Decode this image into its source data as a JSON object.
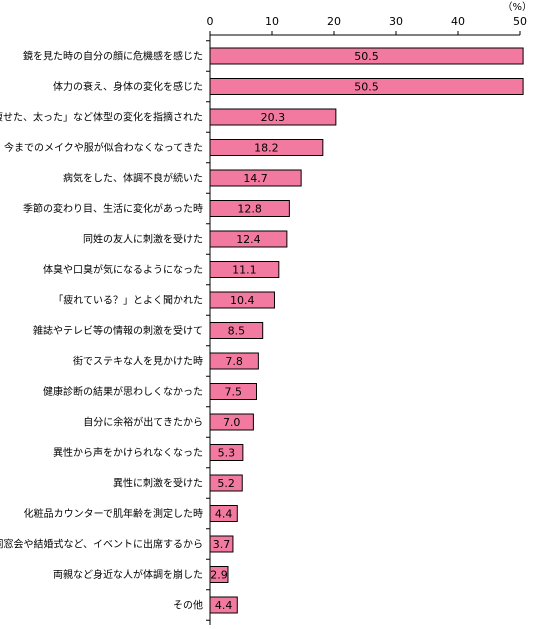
{
  "chart_data": {
    "type": "bar",
    "orientation": "horizontal",
    "unit": "（%）",
    "xlim": [
      0,
      50
    ],
    "ticks": [
      0,
      10,
      20,
      30,
      40,
      50
    ],
    "grid": false,
    "bar_color": "#F27AA0",
    "bar_stroke": "#000000",
    "categories": [
      "鏡を見た時の自分の顔に危機感を感じた",
      "体力の衰え、身体の変化を感じた",
      "「痩せた、太った」など体型の変化を指摘された",
      "今までのメイクや服が似合わなくなってきた",
      "病気をした、体調不良が続いた",
      "季節の変わり目、生活に変化があった時",
      "同姓の友人に刺激を受けた",
      "体臭や口臭が気になるようになった",
      "「疲れている？」とよく聞かれた",
      "雑誌やテレビ等の情報の刺激を受けて",
      "街でステキな人を見かけた時",
      "健康診断の結果が思わしくなかった",
      "自分に余裕が出てきたから",
      "異性から声をかけられなくなった",
      "異性に刺激を受けた",
      "化粧品カウンターで肌年齢を測定した時",
      "同窓会や結婚式など、イベントに出席するから",
      "両親など身近な人が体調を崩した",
      "その他"
    ],
    "values": [
      50.5,
      50.5,
      20.3,
      18.2,
      14.7,
      12.8,
      12.4,
      11.1,
      10.4,
      8.5,
      7.8,
      7.5,
      7.0,
      5.3,
      5.2,
      4.4,
      3.7,
      2.9,
      4.4
    ],
    "value_labels": [
      "50.5",
      "50.5",
      "20.3",
      "18.2",
      "14.7",
      "12.8",
      "12.4",
      "11.1",
      "10.4",
      "8.5",
      "7.8",
      "7.5",
      "7.0",
      "5.3",
      "5.2",
      "4.4",
      "3.7",
      "2.9",
      "4.4"
    ]
  }
}
